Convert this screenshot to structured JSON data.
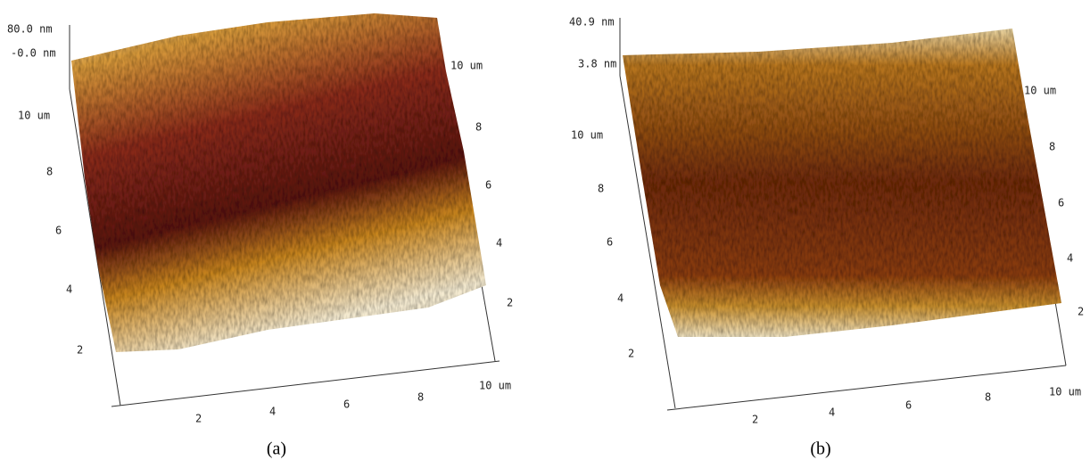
{
  "panels": [
    {
      "z_max": "80.0 nm",
      "z_min": "-0.0 nm",
      "left_ticks": [
        "10 um",
        "8",
        "6",
        "4",
        "2"
      ],
      "right_ticks": [
        "10 um",
        "8",
        "6",
        "4",
        "2"
      ],
      "bottom_ticks": [
        "2",
        "4",
        "6",
        "8",
        "10 um"
      ],
      "caption": "(a)"
    },
    {
      "z_max": "40.9 nm",
      "z_min": "3.8 nm",
      "left_ticks": [
        "10 um",
        "8",
        "6",
        "4",
        "2"
      ],
      "right_ticks": [
        "10 um",
        "8",
        "6",
        "4",
        "2"
      ],
      "bottom_ticks": [
        "2",
        "4",
        "6",
        "8",
        "10 um"
      ],
      "caption": "(b)"
    }
  ]
}
